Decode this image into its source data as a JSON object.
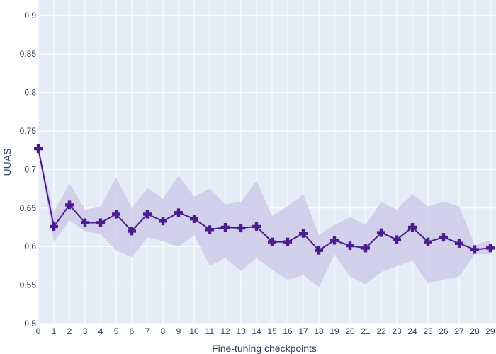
{
  "chart_data": {
    "type": "line",
    "title": "",
    "xlabel": "Fine-tuning checkpoints",
    "ylabel": "UUAS",
    "xlim": [
      0,
      29
    ],
    "ylim": [
      0.5,
      0.92
    ],
    "x_ticks": [
      0,
      1,
      2,
      3,
      4,
      5,
      6,
      7,
      8,
      9,
      10,
      11,
      12,
      13,
      14,
      15,
      16,
      17,
      18,
      19,
      20,
      21,
      22,
      23,
      24,
      25,
      26,
      27,
      28,
      29
    ],
    "y_ticks": [
      0.5,
      0.55,
      0.6,
      0.65,
      0.7,
      0.75,
      0.8,
      0.85,
      0.9
    ],
    "grid": true,
    "colors": {
      "plot_bg": "#e5ecf6",
      "grid": "#ffffff",
      "line": "#4b1c8c",
      "band": "#c9c6e6"
    },
    "x": [
      0,
      1,
      2,
      3,
      4,
      5,
      6,
      7,
      8,
      9,
      10,
      11,
      12,
      13,
      14,
      15,
      16,
      17,
      18,
      19,
      20,
      21,
      22,
      23,
      24,
      25,
      26,
      27,
      28,
      29
    ],
    "series": [
      {
        "values": [
          0.727,
          0.626,
          0.654,
          0.631,
          0.631,
          0.642,
          0.62,
          0.642,
          0.633,
          0.644,
          0.636,
          0.622,
          0.625,
          0.624,
          0.626,
          0.606,
          0.606,
          0.617,
          0.595,
          0.608,
          0.601,
          0.598,
          0.618,
          0.609,
          0.625,
          0.606,
          0.612,
          0.604,
          0.596,
          0.598
        ],
        "band_upper": [
          0.73,
          0.645,
          0.682,
          0.648,
          0.652,
          0.69,
          0.65,
          0.676,
          0.662,
          0.692,
          0.665,
          0.675,
          0.655,
          0.658,
          0.685,
          0.64,
          0.652,
          0.668,
          0.615,
          0.628,
          0.638,
          0.628,
          0.658,
          0.648,
          0.668,
          0.652,
          0.658,
          0.652,
          0.602,
          0.608
        ],
        "band_lower": [
          0.725,
          0.606,
          0.634,
          0.62,
          0.616,
          0.595,
          0.586,
          0.612,
          0.607,
          0.6,
          0.615,
          0.575,
          0.585,
          0.568,
          0.585,
          0.57,
          0.557,
          0.563,
          0.547,
          0.59,
          0.561,
          0.551,
          0.567,
          0.574,
          0.582,
          0.552,
          0.557,
          0.561,
          0.59,
          0.59
        ]
      }
    ]
  }
}
